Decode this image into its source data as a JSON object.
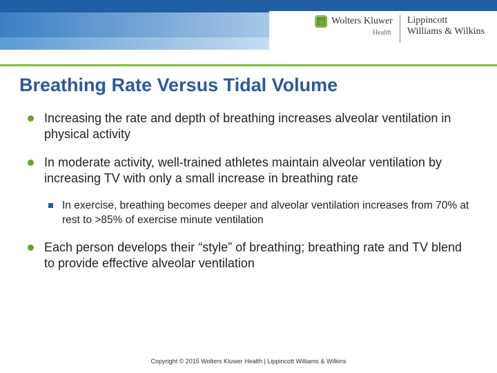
{
  "header": {
    "bar_top_color": "#1e5fa6",
    "bar_mid_gradient": [
      "#3b7fc4",
      "#a8c8e8",
      "#ffffff"
    ],
    "bar_low_gradient": [
      "#5a9bd4",
      "#c8ddf0",
      "#ffffff"
    ],
    "green_strip_color": "#7db93f",
    "wolters_kluwer": "Wolters Kluwer",
    "health": "Health",
    "lippincott_line1": "Lippincott",
    "lippincott_line2": "Williams & Wilkins"
  },
  "slide": {
    "title": "Breathing Rate Versus Tidal Volume",
    "title_color": "#2a5a9a",
    "title_fontsize": 27,
    "bullet_dot_color": "#6da02a",
    "subbullet_square_color": "#2a5a9a",
    "body_fontsize": 18,
    "sub_fontsize": 15.5,
    "bullets": [
      {
        "text": "Increasing the rate and depth of breathing increases alveolar ventilation in physical activity"
      },
      {
        "text": "In moderate activity, well-trained athletes maintain alveolar ventilation by increasing TV with only a small increase in breathing rate",
        "sub": [
          {
            "text": "In exercise, breathing becomes deeper and alveolar ventilation increases from 70% at rest to >85% of exercise minute ventilation"
          }
        ]
      },
      {
        "text": "Each person develops their “style” of breathing; breathing rate and TV blend to provide effective alveolar ventilation"
      }
    ]
  },
  "footer": {
    "text": "Copyright © 2015 Wolters Kluwer Health | Lippincott Williams & Wilkins",
    "fontsize": 9
  }
}
